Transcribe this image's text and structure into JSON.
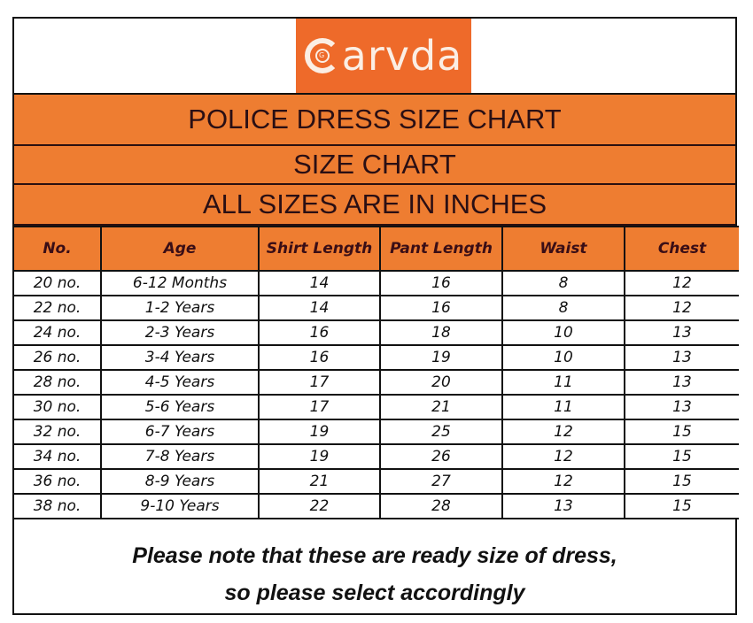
{
  "logo": {
    "brand": "Garvda",
    "brand_rest": "arvda",
    "icon": "garvda-g-logo-icon",
    "background": "#EE6A2A"
  },
  "titles": {
    "main": "POLICE DRESS SIZE CHART",
    "sub": "SIZE CHART",
    "unit_note": "ALL SIZES ARE IN INCHES"
  },
  "colors": {
    "header_orange": "#EE7D31",
    "logo_orange": "#EE6A2A",
    "border": "#111111",
    "header_text": "#3A0E16"
  },
  "table": {
    "columns": [
      "No.",
      "Age",
      "Shirt Length",
      "Pant Length",
      "Waist",
      "Chest"
    ],
    "rows": [
      [
        "20 no.",
        "6-12 Months",
        "14",
        "16",
        "8",
        "12"
      ],
      [
        "22 no.",
        "1-2 Years",
        "14",
        "16",
        "8",
        "12"
      ],
      [
        "24 no.",
        "2-3 Years",
        "16",
        "18",
        "10",
        "13"
      ],
      [
        "26 no.",
        "3-4 Years",
        "16",
        "19",
        "10",
        "13"
      ],
      [
        "28 no.",
        "4-5 Years",
        "17",
        "20",
        "11",
        "13"
      ],
      [
        "30 no.",
        "5-6 Years",
        "17",
        "21",
        "11",
        "13"
      ],
      [
        "32 no.",
        "6-7 Years",
        "19",
        "25",
        "12",
        "15"
      ],
      [
        "34 no.",
        "7-8 Years",
        "19",
        "26",
        "12",
        "15"
      ],
      [
        "36 no.",
        "8-9 Years",
        "21",
        "27",
        "12",
        "15"
      ],
      [
        "38 no.",
        "9-10 Years",
        "22",
        "28",
        "13",
        "15"
      ]
    ]
  },
  "footer": {
    "line1": "Please note that these are ready size of dress,",
    "line2": "so please select accordingly"
  }
}
